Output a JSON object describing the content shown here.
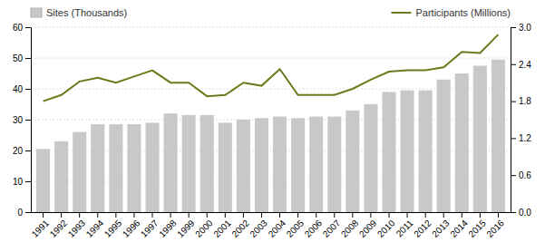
{
  "chart_data": {
    "type": "bar",
    "categories": [
      "1991",
      "1992",
      "1993",
      "1994",
      "1995",
      "1996",
      "1997",
      "1998",
      "1999",
      "2000",
      "2001",
      "2002",
      "2003",
      "2004",
      "2005",
      "2006",
      "2007",
      "2008",
      "2009",
      "2010",
      "2011",
      "2012",
      "2013",
      "2014",
      "2015",
      "2016"
    ],
    "series": [
      {
        "name": "Sites (Thousands)",
        "type": "bar",
        "color": "#c8c8c8",
        "values": [
          20.5,
          23.0,
          26.0,
          28.5,
          28.5,
          28.5,
          29.0,
          32.0,
          31.5,
          31.5,
          29.0,
          30.0,
          30.5,
          31.0,
          30.5,
          31.0,
          31.0,
          33.0,
          35.0,
          39.0,
          39.5,
          39.5,
          43.0,
          45.0,
          47.5,
          49.5
        ]
      },
      {
        "name": "Participants (Millions)",
        "type": "line",
        "color": "#6b7a1a",
        "axis": "y2",
        "values": [
          1.8,
          1.9,
          2.12,
          2.18,
          2.1,
          2.2,
          2.3,
          2.1,
          2.1,
          1.88,
          1.9,
          2.1,
          2.05,
          2.32,
          1.9,
          1.9,
          1.9,
          2.0,
          2.15,
          2.28,
          2.3,
          2.3,
          2.35,
          2.6,
          2.58,
          2.88
        ]
      }
    ],
    "ylim": [
      0,
      60
    ],
    "yticks": [
      0,
      10,
      20,
      30,
      40,
      50,
      60
    ],
    "y2lim": [
      0.0,
      3.0
    ],
    "y2ticks": [
      {
        "value": 0.0,
        "label": "0.0"
      },
      0.6,
      1.2,
      1.8,
      2.4,
      {
        "value": 3.0,
        "label": "3.0"
      }
    ],
    "grid": true,
    "legend": "top"
  }
}
